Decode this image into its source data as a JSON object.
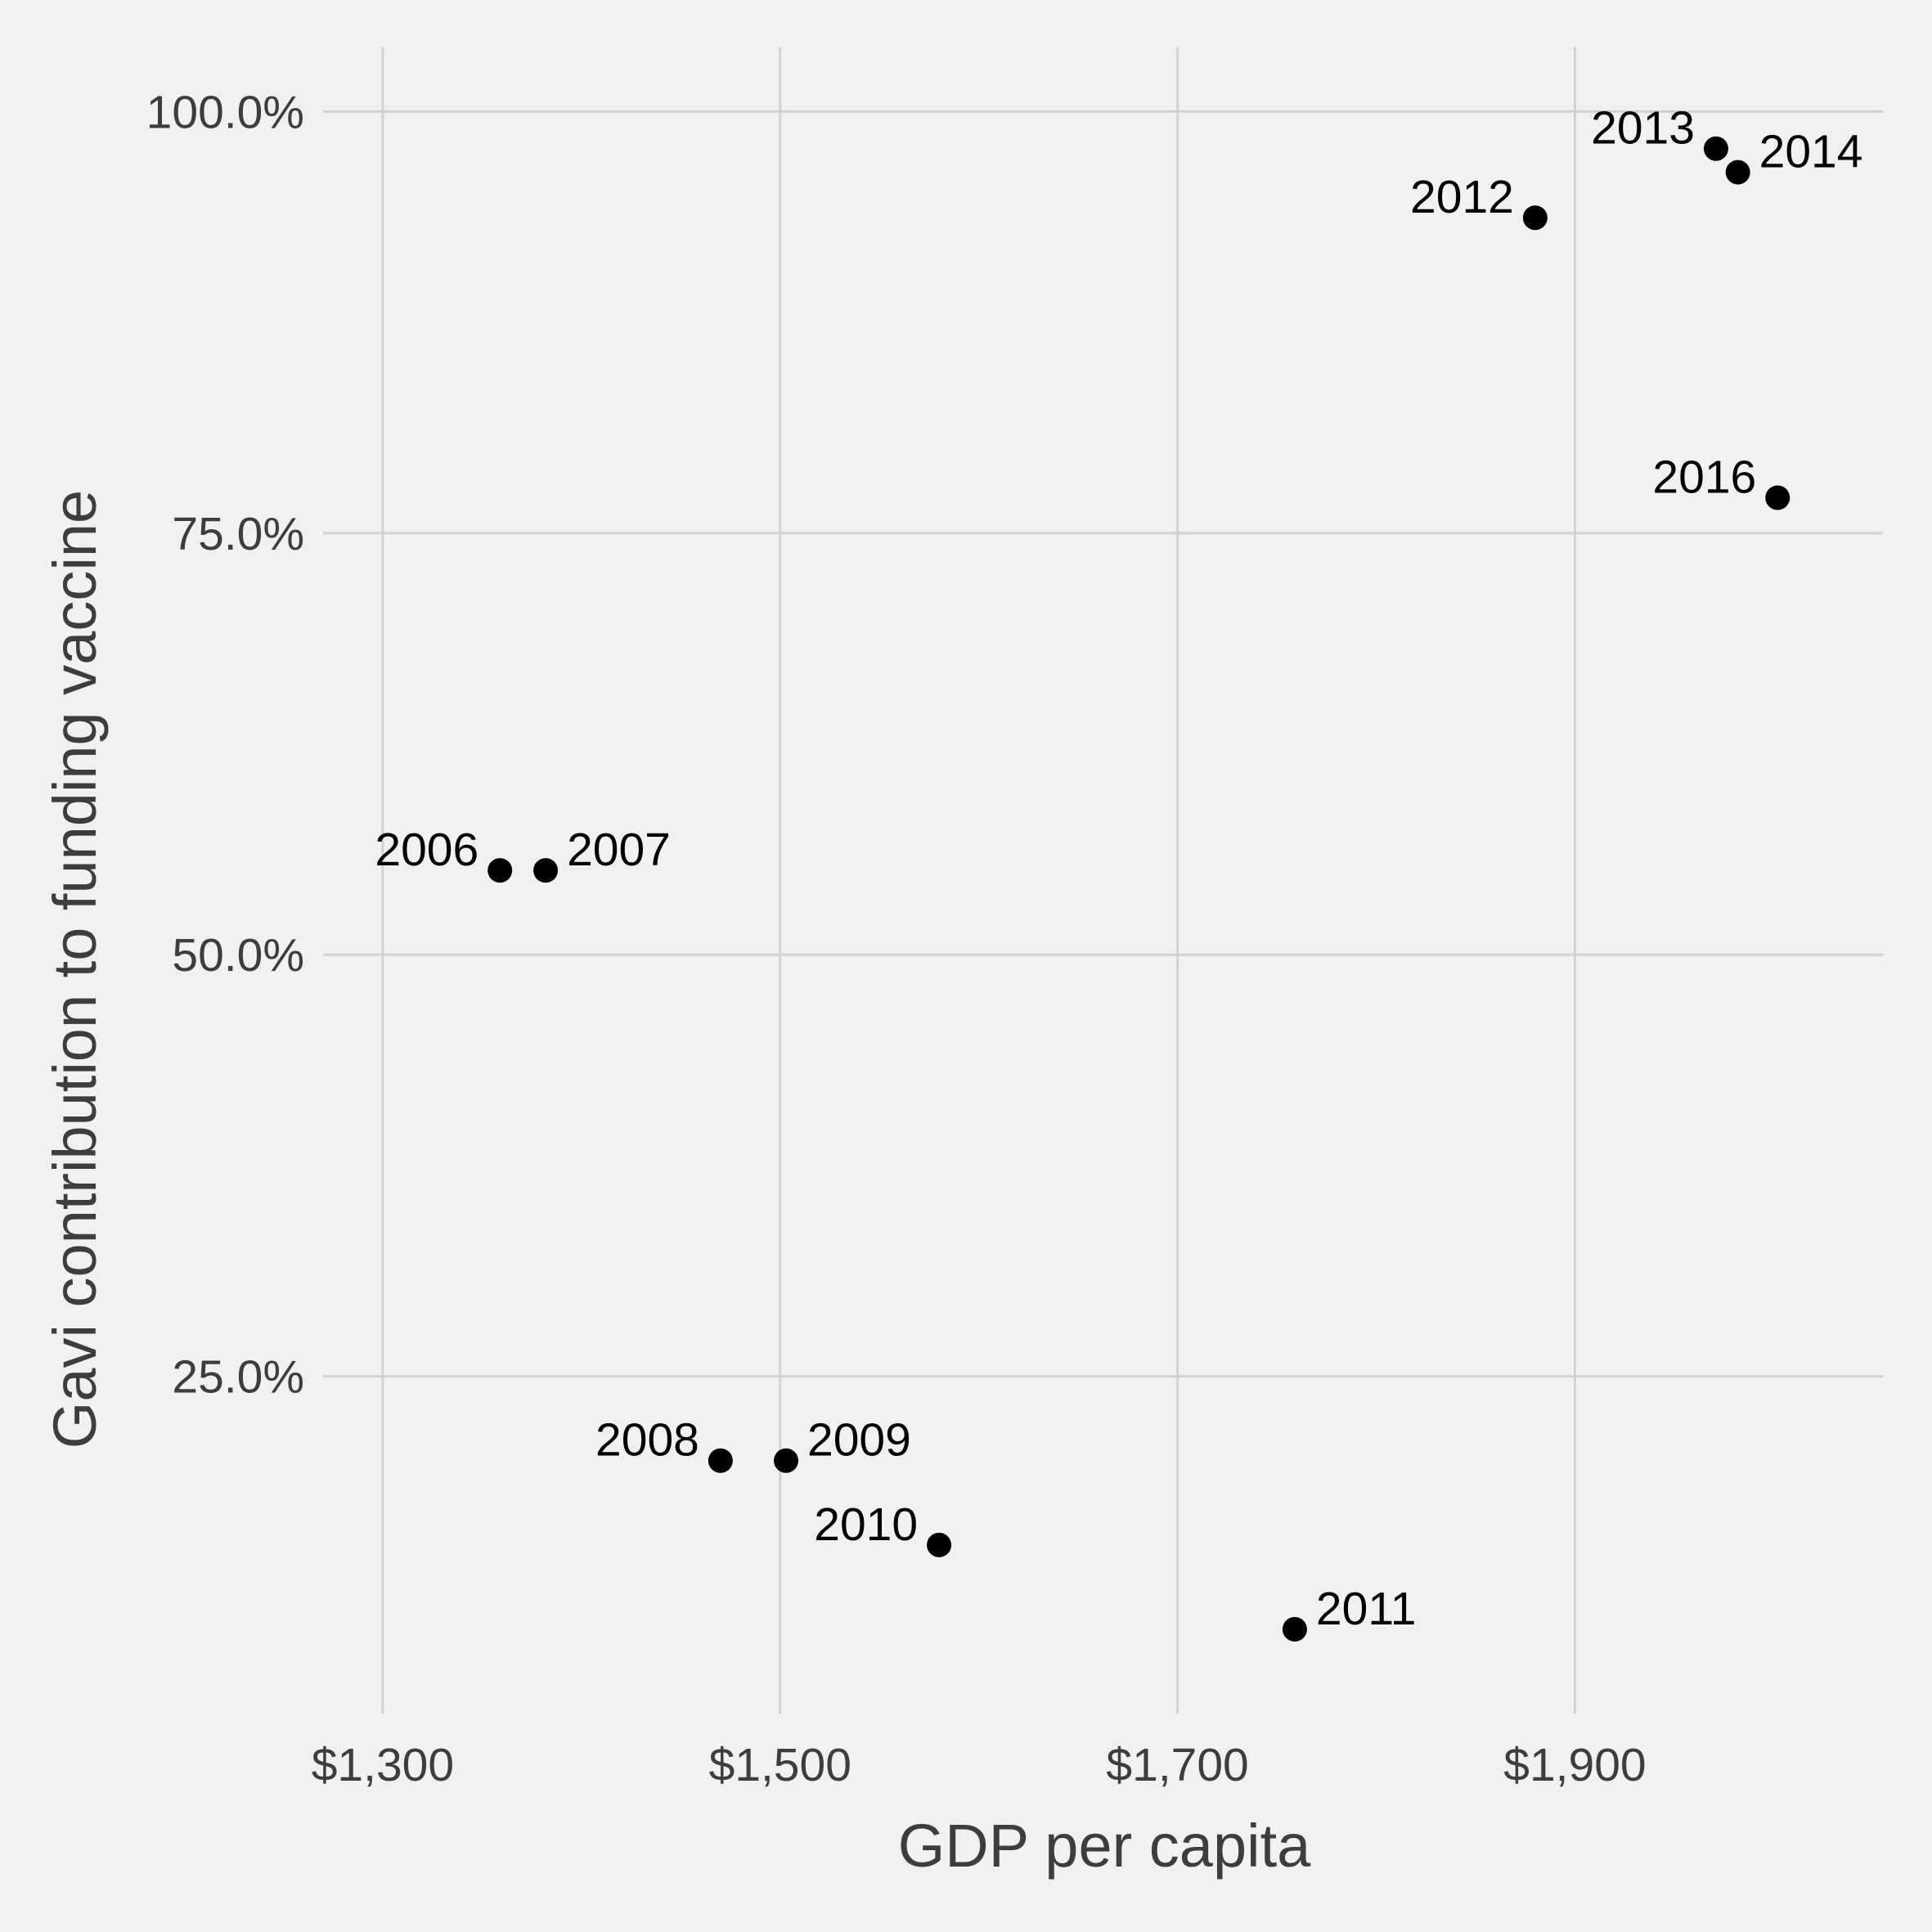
{
  "chart_data": {
    "type": "scatter",
    "title": "",
    "xlabel": "GDP per capita",
    "ylabel": "Gavi contribution to funding vaccine",
    "xlim": [
      1270,
      2055
    ],
    "ylim": [
      0.05,
      1.038
    ],
    "x_ticks": [
      {
        "value": 1300,
        "label": "$1,300"
      },
      {
        "value": 1500,
        "label": "$1,500"
      },
      {
        "value": 1700,
        "label": "$1,700"
      },
      {
        "value": 1900,
        "label": "$1,900"
      }
    ],
    "y_ticks": [
      {
        "value": 0.25,
        "label": "25.0%"
      },
      {
        "value": 0.5,
        "label": "50.0%"
      },
      {
        "value": 0.75,
        "label": "75.0%"
      },
      {
        "value": 1.0,
        "label": "100.0%"
      }
    ],
    "grid": true,
    "legend": "none",
    "point_color": "#000000",
    "points": [
      {
        "label": "2006",
        "x": 1359,
        "y": 0.55,
        "label_side": "left"
      },
      {
        "label": "2007",
        "x": 1382,
        "y": 0.55,
        "label_side": "right"
      },
      {
        "label": "2008",
        "x": 1470,
        "y": 0.2,
        "label_side": "left"
      },
      {
        "label": "2009",
        "x": 1503,
        "y": 0.2,
        "label_side": "right"
      },
      {
        "label": "2010",
        "x": 1580,
        "y": 0.15,
        "label_side": "left"
      },
      {
        "label": "2011",
        "x": 1759,
        "y": 0.1,
        "label_side": "right"
      },
      {
        "label": "2012",
        "x": 1880,
        "y": 0.937,
        "label_side": "left"
      },
      {
        "label": "2013",
        "x": 1971,
        "y": 0.978,
        "label_side": "left"
      },
      {
        "label": "2014",
        "x": 1982,
        "y": 0.964,
        "label_side": "right"
      },
      {
        "label": "2016",
        "x": 2002,
        "y": 0.771,
        "label_side": "left"
      }
    ]
  }
}
